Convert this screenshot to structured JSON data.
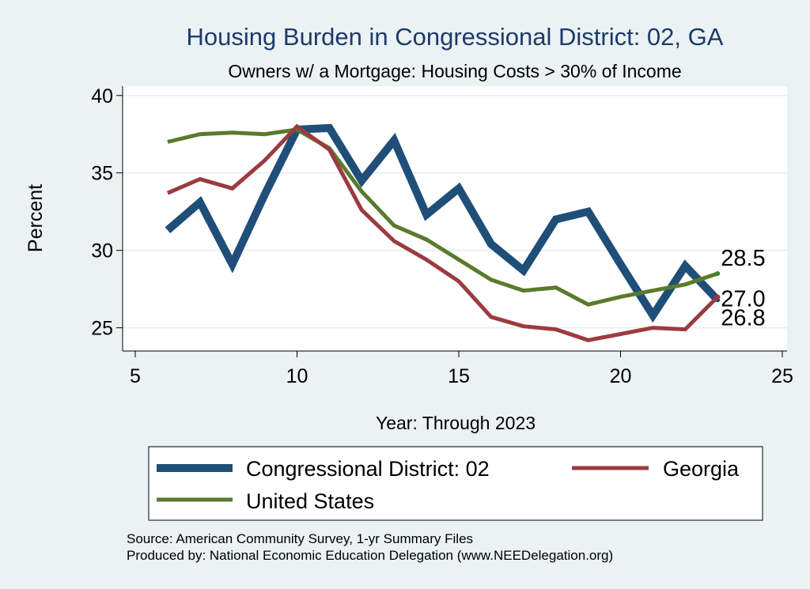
{
  "chart_data": {
    "type": "line",
    "title": "Housing Burden in Congressional District:  02, GA",
    "subtitle": "Owners w/ a Mortgage: Housing Costs > 30% of Income",
    "xlabel": "Year: Through 2023",
    "ylabel": "Percent",
    "xlim": [
      5,
      25
    ],
    "ylim": [
      23.5,
      40.6
    ],
    "xticks": [
      "5",
      "10",
      "15",
      "20",
      "25"
    ],
    "yticks": [
      "25",
      "30",
      "35",
      "40"
    ],
    "grid": true,
    "legend_position": "bottom",
    "series": [
      {
        "name": "Congressional District:  02",
        "color": "#1f4e79",
        "x": [
          6,
          7,
          8,
          9,
          10,
          11,
          12,
          13,
          14,
          15,
          16,
          17,
          18,
          19,
          20,
          21,
          22,
          23
        ],
        "values": [
          31.3,
          33.1,
          29.1,
          33.6,
          37.8,
          37.9,
          34.5,
          37.1,
          32.3,
          34.0,
          30.4,
          28.7,
          32.0,
          32.5,
          29.1,
          25.8,
          29.0,
          26.8
        ]
      },
      {
        "name": "Georgia",
        "color": "#9b3b40",
        "x": [
          6,
          7,
          8,
          9,
          10,
          11,
          12,
          13,
          14,
          15,
          16,
          17,
          18,
          19,
          20,
          21,
          22,
          23
        ],
        "values": [
          33.7,
          34.6,
          34.0,
          35.8,
          38.0,
          36.5,
          32.6,
          30.6,
          29.4,
          28.0,
          25.7,
          25.1,
          24.9,
          24.2,
          24.6,
          25.0,
          24.9,
          27.0
        ]
      },
      {
        "name": "United States",
        "color": "#5a7a2c",
        "x": [
          6,
          7,
          8,
          9,
          10,
          11,
          12,
          13,
          14,
          15,
          16,
          17,
          18,
          19,
          20,
          21,
          22,
          23
        ],
        "values": [
          37.0,
          37.5,
          37.6,
          37.5,
          37.8,
          36.6,
          33.8,
          31.6,
          30.7,
          29.4,
          28.1,
          27.4,
          27.6,
          26.5,
          27.0,
          27.4,
          27.8,
          28.5
        ]
      }
    ],
    "end_labels": [
      {
        "series": "United States",
        "text": "28.5"
      },
      {
        "series": "Georgia",
        "text": "27.0"
      },
      {
        "series": "Congressional District:  02",
        "text": "26.8"
      }
    ],
    "source_lines": [
      "Source: American Community Survey, 1-yr Summary Files",
      "Produced by: National Economic Education Delegation (www.NEEDelegation.org)"
    ]
  }
}
